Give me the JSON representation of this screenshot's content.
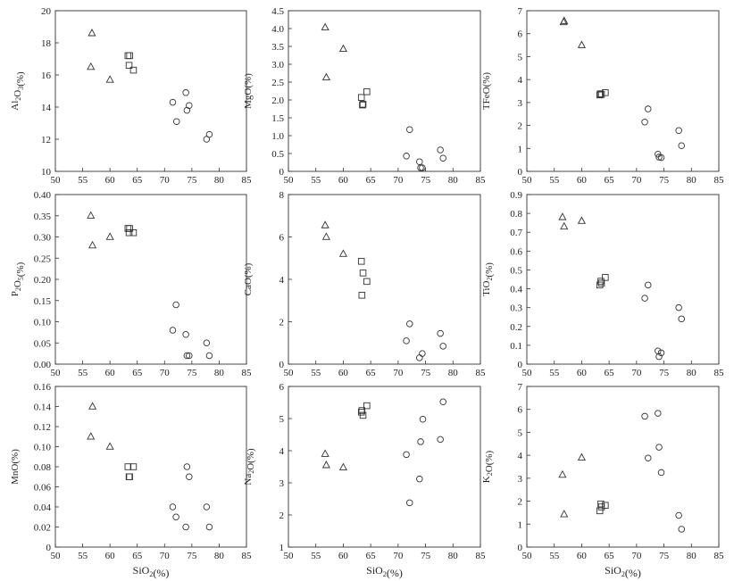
{
  "chart_data": [
    {
      "type": "scatter",
      "ylabel": "Al2O3(%)",
      "xlabel": "",
      "xlim": [
        50,
        85
      ],
      "ylim": [
        10,
        20
      ],
      "xticks": [
        "50",
        "55",
        "60",
        "65",
        "70",
        "75",
        "80",
        "85"
      ],
      "yticks": [
        "10",
        "12",
        "14",
        "16",
        "18",
        "20"
      ],
      "series": [
        {
          "marker": "triangle",
          "points": [
            [
              56.7,
              18.6
            ],
            [
              56.5,
              16.5
            ],
            [
              60.0,
              15.7
            ]
          ]
        },
        {
          "marker": "square",
          "points": [
            [
              63.3,
              17.2
            ],
            [
              63.6,
              17.2
            ],
            [
              63.5,
              16.6
            ],
            [
              64.3,
              16.3
            ]
          ]
        },
        {
          "marker": "circle",
          "points": [
            [
              71.5,
              14.3
            ],
            [
              72.2,
              13.1
            ],
            [
              73.9,
              14.9
            ],
            [
              74.1,
              13.8
            ],
            [
              74.5,
              14.1
            ],
            [
              77.7,
              12.0
            ],
            [
              78.2,
              12.3
            ]
          ]
        }
      ]
    },
    {
      "type": "scatter",
      "ylabel": "MgO(%)",
      "xlabel": "",
      "xlim": [
        50,
        85
      ],
      "ylim": [
        0,
        4.5
      ],
      "xticks": [
        "50",
        "55",
        "60",
        "65",
        "70",
        "75",
        "80",
        "85"
      ],
      "yticks": [
        "0",
        "0.5",
        "1.0",
        "1.5",
        "2.0",
        "2.5",
        "3.0",
        "3.5",
        "4.0",
        "4.5"
      ],
      "series": [
        {
          "marker": "triangle",
          "points": [
            [
              56.7,
              4.03
            ],
            [
              56.9,
              2.63
            ],
            [
              60.0,
              3.43
            ]
          ]
        },
        {
          "marker": "square",
          "points": [
            [
              63.3,
              2.07
            ],
            [
              63.5,
              1.86
            ],
            [
              63.6,
              1.88
            ],
            [
              64.3,
              2.23
            ]
          ]
        },
        {
          "marker": "circle",
          "points": [
            [
              71.5,
              0.43
            ],
            [
              72.1,
              1.17
            ],
            [
              73.9,
              0.27
            ],
            [
              74.1,
              0.1
            ],
            [
              74.4,
              0.1
            ],
            [
              77.7,
              0.6
            ],
            [
              78.2,
              0.37
            ]
          ]
        }
      ]
    },
    {
      "type": "scatter",
      "ylabel": "TFeO(%)",
      "xlabel": "",
      "xlim": [
        50,
        85
      ],
      "ylim": [
        0,
        7
      ],
      "xticks": [
        "50",
        "55",
        "60",
        "65",
        "70",
        "75",
        "80",
        "85"
      ],
      "yticks": [
        "0",
        "1",
        "2",
        "3",
        "4",
        "5",
        "6",
        "7"
      ],
      "series": [
        {
          "marker": "triangle",
          "points": [
            [
              56.7,
              6.5
            ],
            [
              56.8,
              6.55
            ],
            [
              60.0,
              5.5
            ]
          ]
        },
        {
          "marker": "square",
          "points": [
            [
              63.3,
              3.33
            ],
            [
              63.4,
              3.38
            ],
            [
              63.6,
              3.35
            ],
            [
              64.3,
              3.43
            ]
          ]
        },
        {
          "marker": "circle",
          "points": [
            [
              71.5,
              2.15
            ],
            [
              72.1,
              2.72
            ],
            [
              73.9,
              0.75
            ],
            [
              74.1,
              0.62
            ],
            [
              74.5,
              0.6
            ],
            [
              77.7,
              1.78
            ],
            [
              78.2,
              1.12
            ]
          ]
        }
      ]
    },
    {
      "type": "scatter",
      "ylabel": "P2O5(%)",
      "xlabel": "",
      "xlim": [
        50,
        85
      ],
      "ylim": [
        0,
        0.4
      ],
      "xticks": [
        "50",
        "55",
        "60",
        "65",
        "70",
        "75",
        "80",
        "85"
      ],
      "yticks": [
        "0.00",
        "0.05",
        "0.10",
        "0.15",
        "0.20",
        "0.25",
        "0.30",
        "0.35",
        "0.40"
      ],
      "series": [
        {
          "marker": "triangle",
          "points": [
            [
              56.5,
              0.35
            ],
            [
              56.8,
              0.28
            ],
            [
              60.0,
              0.3
            ]
          ]
        },
        {
          "marker": "square",
          "points": [
            [
              63.3,
              0.32
            ],
            [
              63.5,
              0.31
            ],
            [
              63.6,
              0.32
            ],
            [
              64.3,
              0.31
            ]
          ]
        },
        {
          "marker": "circle",
          "points": [
            [
              71.5,
              0.08
            ],
            [
              72.1,
              0.14
            ],
            [
              73.9,
              0.07
            ],
            [
              74.1,
              0.02
            ],
            [
              74.5,
              0.02
            ],
            [
              77.7,
              0.05
            ],
            [
              78.2,
              0.02
            ]
          ]
        }
      ]
    },
    {
      "type": "scatter",
      "ylabel": "CaO(%)",
      "xlabel": "",
      "xlim": [
        50,
        85
      ],
      "ylim": [
        0,
        8
      ],
      "xticks": [
        "50",
        "55",
        "60",
        "65",
        "70",
        "75",
        "80",
        "85"
      ],
      "yticks": [
        "0",
        "2",
        "4",
        "6",
        "8"
      ],
      "series": [
        {
          "marker": "triangle",
          "points": [
            [
              56.7,
              6.55
            ],
            [
              56.9,
              6.0
            ],
            [
              60.0,
              5.2
            ]
          ]
        },
        {
          "marker": "square",
          "points": [
            [
              63.3,
              4.85
            ],
            [
              63.4,
              3.25
            ],
            [
              63.6,
              4.3
            ],
            [
              64.3,
              3.9
            ]
          ]
        },
        {
          "marker": "circle",
          "points": [
            [
              71.5,
              1.1
            ],
            [
              72.1,
              1.9
            ],
            [
              73.9,
              0.3
            ],
            [
              74.4,
              0.5
            ],
            [
              77.7,
              1.45
            ],
            [
              78.2,
              0.85
            ]
          ]
        }
      ]
    },
    {
      "type": "scatter",
      "ylabel": "TiO2(%)",
      "xlabel": "",
      "xlim": [
        50,
        85
      ],
      "ylim": [
        0,
        0.9
      ],
      "xticks": [
        "50",
        "55",
        "60",
        "65",
        "70",
        "75",
        "80",
        "85"
      ],
      "yticks": [
        "0",
        "0.1",
        "0.2",
        "0.3",
        "0.4",
        "0.5",
        "0.6",
        "0.7",
        "0.8",
        "0.9"
      ],
      "series": [
        {
          "marker": "triangle",
          "points": [
            [
              56.5,
              0.78
            ],
            [
              56.8,
              0.73
            ],
            [
              60.0,
              0.76
            ]
          ]
        },
        {
          "marker": "square",
          "points": [
            [
              63.3,
              0.42
            ],
            [
              63.5,
              0.44
            ],
            [
              63.6,
              0.43
            ],
            [
              64.3,
              0.46
            ]
          ]
        },
        {
          "marker": "circle",
          "points": [
            [
              71.5,
              0.35
            ],
            [
              72.1,
              0.42
            ],
            [
              73.9,
              0.07
            ],
            [
              74.1,
              0.04
            ],
            [
              74.5,
              0.06
            ],
            [
              77.7,
              0.3
            ],
            [
              78.2,
              0.24
            ]
          ]
        }
      ]
    },
    {
      "type": "scatter",
      "ylabel": "MnO(%)",
      "xlabel": "SiO2(%)",
      "xlim": [
        50,
        85
      ],
      "ylim": [
        0,
        0.16
      ],
      "xticks": [
        "50",
        "55",
        "60",
        "65",
        "70",
        "75",
        "80",
        "85"
      ],
      "yticks": [
        "0",
        "0.02",
        "0.04",
        "0.06",
        "0.08",
        "0.10",
        "0.12",
        "0.14",
        "0.16"
      ],
      "series": [
        {
          "marker": "triangle",
          "points": [
            [
              56.8,
              0.14
            ],
            [
              56.5,
              0.11
            ],
            [
              60.0,
              0.1
            ]
          ]
        },
        {
          "marker": "square",
          "points": [
            [
              63.3,
              0.08
            ],
            [
              63.5,
              0.07
            ],
            [
              63.6,
              0.07
            ],
            [
              64.3,
              0.08
            ]
          ]
        },
        {
          "marker": "circle",
          "points": [
            [
              71.5,
              0.04
            ],
            [
              72.1,
              0.03
            ],
            [
              73.9,
              0.02
            ],
            [
              74.1,
              0.08
            ],
            [
              74.5,
              0.07
            ],
            [
              77.7,
              0.04
            ],
            [
              78.2,
              0.02
            ]
          ]
        }
      ]
    },
    {
      "type": "scatter",
      "ylabel": "Na2O(%)",
      "xlabel": "SiO2(%)",
      "xlim": [
        50,
        85
      ],
      "ylim": [
        1,
        6
      ],
      "xticks": [
        "50",
        "55",
        "60",
        "65",
        "70",
        "75",
        "80",
        "85"
      ],
      "yticks": [
        "1",
        "2",
        "3",
        "4",
        "5",
        "6"
      ],
      "series": [
        {
          "marker": "triangle",
          "points": [
            [
              56.7,
              3.9
            ],
            [
              56.9,
              3.55
            ],
            [
              60.0,
              3.48
            ]
          ]
        },
        {
          "marker": "square",
          "points": [
            [
              63.3,
              5.2
            ],
            [
              63.4,
              5.25
            ],
            [
              63.6,
              5.1
            ],
            [
              64.3,
              5.4
            ]
          ]
        },
        {
          "marker": "circle",
          "points": [
            [
              71.5,
              3.88
            ],
            [
              72.1,
              2.38
            ],
            [
              73.9,
              3.12
            ],
            [
              74.1,
              4.28
            ],
            [
              74.5,
              4.98
            ],
            [
              77.7,
              4.35
            ],
            [
              78.2,
              5.52
            ]
          ]
        }
      ]
    },
    {
      "type": "scatter",
      "ylabel": "K2O(%)",
      "xlabel": "SiO2(%)",
      "xlim": [
        50,
        85
      ],
      "ylim": [
        0,
        7
      ],
      "xticks": [
        "50",
        "55",
        "60",
        "65",
        "70",
        "75",
        "80",
        "85"
      ],
      "yticks": [
        "0",
        "1",
        "2",
        "3",
        "4",
        "5",
        "6",
        "7"
      ],
      "series": [
        {
          "marker": "triangle",
          "points": [
            [
              56.5,
              3.15
            ],
            [
              56.8,
              1.43
            ],
            [
              60.0,
              3.9
            ]
          ]
        },
        {
          "marker": "square",
          "points": [
            [
              63.3,
              1.58
            ],
            [
              63.5,
              1.88
            ],
            [
              63.6,
              1.75
            ],
            [
              64.3,
              1.82
            ]
          ]
        },
        {
          "marker": "circle",
          "points": [
            [
              71.5,
              5.7
            ],
            [
              72.1,
              3.88
            ],
            [
              73.9,
              5.83
            ],
            [
              74.1,
              4.35
            ],
            [
              74.5,
              3.25
            ],
            [
              77.7,
              1.38
            ],
            [
              78.2,
              0.78
            ]
          ]
        }
      ]
    }
  ]
}
